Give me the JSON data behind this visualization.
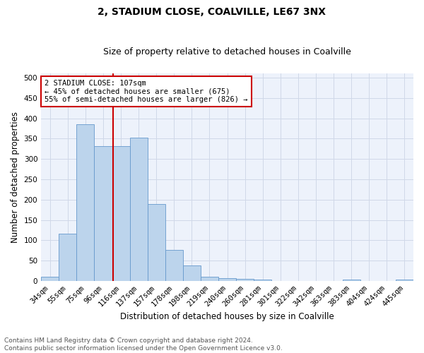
{
  "title": "2, STADIUM CLOSE, COALVILLE, LE67 3NX",
  "subtitle": "Size of property relative to detached houses in Coalville",
  "xlabel": "Distribution of detached houses by size in Coalville",
  "ylabel": "Number of detached properties",
  "categories": [
    "34sqm",
    "55sqm",
    "75sqm",
    "96sqm",
    "116sqm",
    "137sqm",
    "157sqm",
    "178sqm",
    "198sqm",
    "219sqm",
    "240sqm",
    "260sqm",
    "281sqm",
    "301sqm",
    "322sqm",
    "342sqm",
    "363sqm",
    "383sqm",
    "404sqm",
    "424sqm",
    "445sqm"
  ],
  "values": [
    10,
    116,
    385,
    332,
    332,
    353,
    190,
    76,
    38,
    10,
    7,
    5,
    4,
    0,
    0,
    0,
    0,
    4,
    0,
    0,
    4
  ],
  "bar_color": "#bcd4ec",
  "bar_edge_color": "#6699cc",
  "vline_x_index": 3.55,
  "vline_color": "#cc0000",
  "annotation_text": "2 STADIUM CLOSE: 107sqm\n← 45% of detached houses are smaller (675)\n55% of semi-detached houses are larger (826) →",
  "annotation_box_color": "#ffffff",
  "annotation_box_edge": "#cc0000",
  "ylim": [
    0,
    510
  ],
  "yticks": [
    0,
    50,
    100,
    150,
    200,
    250,
    300,
    350,
    400,
    450,
    500
  ],
  "grid_color": "#d0d8e8",
  "background_color": "#edf2fb",
  "footnote": "Contains HM Land Registry data © Crown copyright and database right 2024.\nContains public sector information licensed under the Open Government Licence v3.0.",
  "title_fontsize": 10,
  "subtitle_fontsize": 9,
  "xlabel_fontsize": 8.5,
  "ylabel_fontsize": 8.5,
  "tick_fontsize": 7.5,
  "annotation_fontsize": 7.5,
  "footnote_fontsize": 6.5
}
